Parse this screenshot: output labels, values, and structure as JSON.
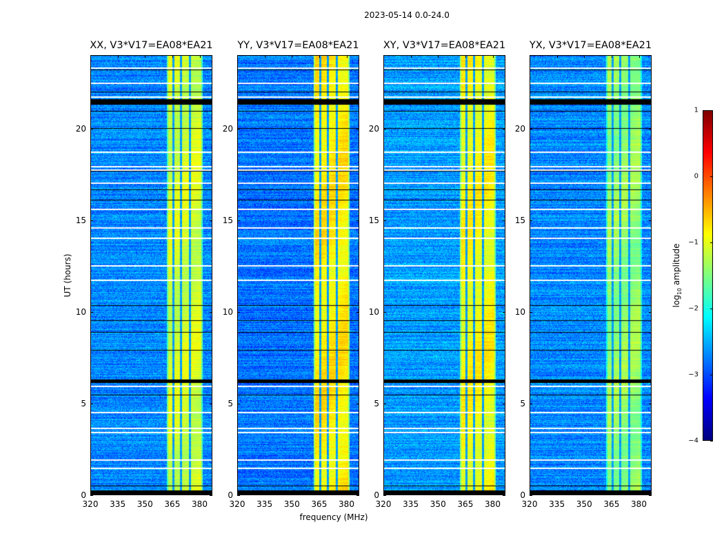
{
  "chart_data": {
    "type": "heatmap",
    "title": "2023-05-14 0.0-24.0",
    "xlabel": "frequency (MHz)",
    "ylabel": "UT (hours)",
    "xlim": [
      320,
      387
    ],
    "ylim": [
      0,
      24
    ],
    "xticks": [
      320,
      335,
      350,
      365,
      380
    ],
    "yticks": [
      0,
      5,
      10,
      15,
      20
    ],
    "panels": [
      {
        "title": "XX, V3*V17=EA08*EA21",
        "band_level": -1.1,
        "background_level": -2.7
      },
      {
        "title": "YY, V3*V17=EA08*EA21",
        "band_level": -0.8,
        "background_level": -2.8
      },
      {
        "title": "XY, V3*V17=EA08*EA21",
        "band_level": -0.9,
        "background_level": -2.6
      },
      {
        "title": "YX, V3*V17=EA08*EA21",
        "band_level": -1.4,
        "background_level": -2.7
      }
    ],
    "rfi_band_mhz": [
      362,
      382
    ],
    "rfi_band_gaps_mhz": [
      365.5,
      369.8,
      374.8
    ],
    "flagged_white_hours": [
      23.36,
      22.54,
      21.78,
      18.78,
      17.99,
      17.8,
      17.05,
      15.62,
      14.61,
      14.05,
      12.54,
      11.76,
      5.97,
      4.54,
      3.64,
      3.42,
      1.92,
      1.46
    ],
    "dropout_black_hours": [
      23.25,
      22.05,
      21.0,
      20.06,
      17.69,
      16.68,
      16.11,
      10.37,
      9.54,
      8.9,
      7.92,
      5.45,
      0.49
    ],
    "dropout_black_ranges_hours": [
      [
        21.37,
        21.63
      ],
      [
        6.15,
        6.28
      ],
      [
        0,
        0.23
      ]
    ],
    "colorbar": {
      "label": "log10 amplitude",
      "label_main": "log",
      "label_sub": "10",
      "label_rest": " amplitude",
      "range": [
        -4,
        1
      ],
      "ticks": [
        1,
        0,
        -1,
        -2,
        -3,
        -4
      ],
      "tick_labels": [
        "1",
        "0",
        "−1",
        "−2",
        "−3",
        "−4"
      ],
      "colormap": "jet"
    }
  }
}
